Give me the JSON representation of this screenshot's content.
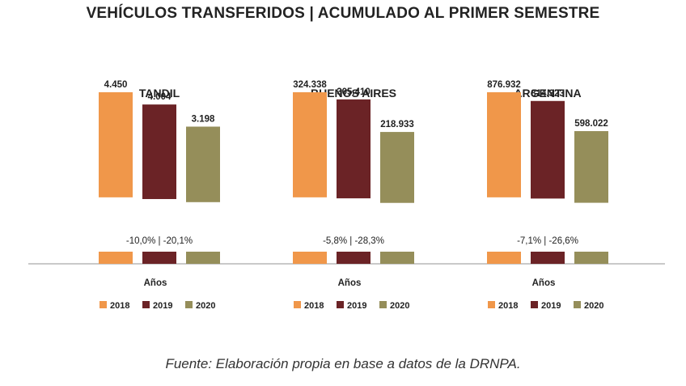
{
  "title": "VEHÍCULOS TRANSFERIDOS | ACUMULADO AL PRIMER SEMESTRE",
  "source": "Fuente: Elaboración propia en base a datos de la DRNPA.",
  "colors": {
    "y2018": "#f0974a",
    "y2019": "#6b2326",
    "y2020": "#958e5a",
    "axis": "#a9a9a9"
  },
  "chart_data": [
    {
      "type": "bar",
      "title": "TANDIL",
      "categories": [
        "2018",
        "2019",
        "2020"
      ],
      "values": [
        4450,
        4004,
        3198
      ],
      "value_labels": [
        "4.450",
        "4.004",
        "3.198"
      ],
      "change_label": "-10,0%  |  -20,1%",
      "xlabel": "Años",
      "legend": [
        "2018",
        "2019",
        "2020"
      ],
      "ylim": [
        0,
        4450
      ]
    },
    {
      "type": "bar",
      "title": "BUENOS AIRES",
      "categories": [
        "2018",
        "2019",
        "2020"
      ],
      "values": [
        324338,
        305410,
        218933
      ],
      "value_labels": [
        "324.338",
        "305.410",
        "218.933"
      ],
      "change_label": "-5,8%  |  -28,3%",
      "xlabel": "Años",
      "legend": [
        "2018",
        "2019",
        "2020"
      ],
      "ylim": [
        0,
        324338
      ]
    },
    {
      "type": "bar",
      "title": "ARGENTINA",
      "categories": [
        "2018",
        "2019",
        "2020"
      ],
      "values": [
        876932,
        814323,
        598022
      ],
      "value_labels": [
        "876.932",
        "814.323",
        "598.022"
      ],
      "change_label": "-7,1%  |  -26,6%",
      "xlabel": "Años",
      "legend": [
        "2018",
        "2019",
        "2020"
      ],
      "ylim": [
        0,
        876932
      ]
    }
  ]
}
